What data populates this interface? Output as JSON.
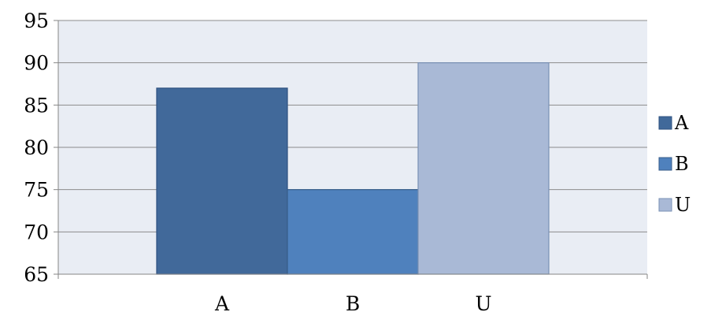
{
  "chart_data": {
    "type": "bar",
    "categories": [
      "A",
      "B",
      "U"
    ],
    "values": [
      87,
      75,
      90
    ],
    "ylim": [
      65,
      95
    ],
    "yticks": [
      65,
      70,
      75,
      80,
      85,
      90,
      95
    ],
    "grid": true,
    "legend": {
      "placement": "right",
      "entries": [
        "A",
        "B",
        "U"
      ]
    },
    "colors": {
      "bars": [
        "#41699a",
        "#4f81bd",
        "#a9b9d6"
      ],
      "bar_borders": [
        "#2e5180",
        "#385d8a",
        "#7a91b5"
      ],
      "plot_background": "#e9edf4",
      "gridline": "#8c8c8c",
      "axis": "#868686"
    }
  }
}
